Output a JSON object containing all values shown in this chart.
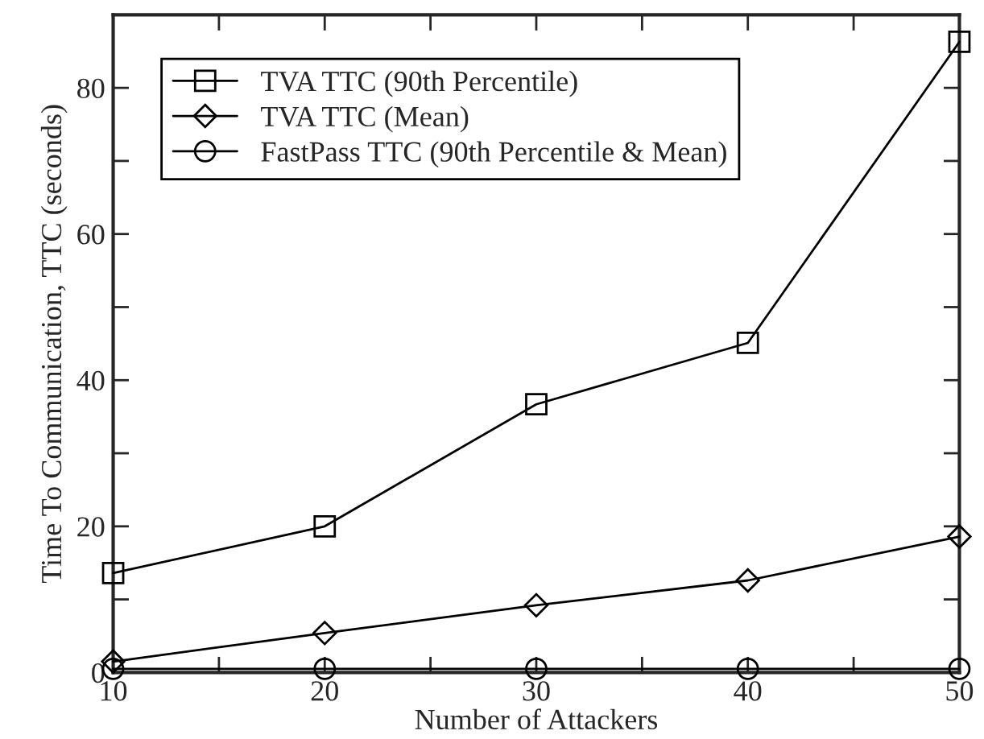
{
  "chart_data": {
    "type": "line",
    "xlabel": "Number of Attackers",
    "ylabel": "Time To Communication, TTC (seconds)",
    "x": [
      10,
      20,
      30,
      40,
      50
    ],
    "series": [
      {
        "name": "TVA TTC (90th Percentile)",
        "color": "#000000",
        "marker": "square",
        "values": [
          13.6,
          20,
          36.7,
          45.1,
          86.3
        ]
      },
      {
        "name": "TVA TTC (Mean)",
        "color": "#000000",
        "marker": "diamond",
        "values": [
          1.5,
          5.4,
          9.2,
          12.6,
          18.6
        ]
      },
      {
        "name": "FastPass TTC (90th Percentile & Mean)",
        "color": "#000000",
        "marker": "circle",
        "values": [
          0.5,
          0.5,
          0.5,
          0.5,
          0.5
        ]
      }
    ],
    "xlim": [
      10,
      50
    ],
    "ylim": [
      0,
      90
    ],
    "xticks": [
      10,
      {
        "value": 15,
        "label": null
      },
      20,
      {
        "value": 25,
        "label": null
      },
      30,
      {
        "value": 35,
        "label": null
      },
      40,
      {
        "value": 45,
        "label": null
      },
      50
    ],
    "yticks": [
      0,
      {
        "value": 10,
        "label": null
      },
      20,
      {
        "value": 30,
        "label": null
      },
      40,
      {
        "value": 50,
        "label": null
      },
      60,
      {
        "value": 70,
        "label": null
      },
      80
    ],
    "legend": "top left",
    "grid": false,
    "line_style": "solid"
  }
}
